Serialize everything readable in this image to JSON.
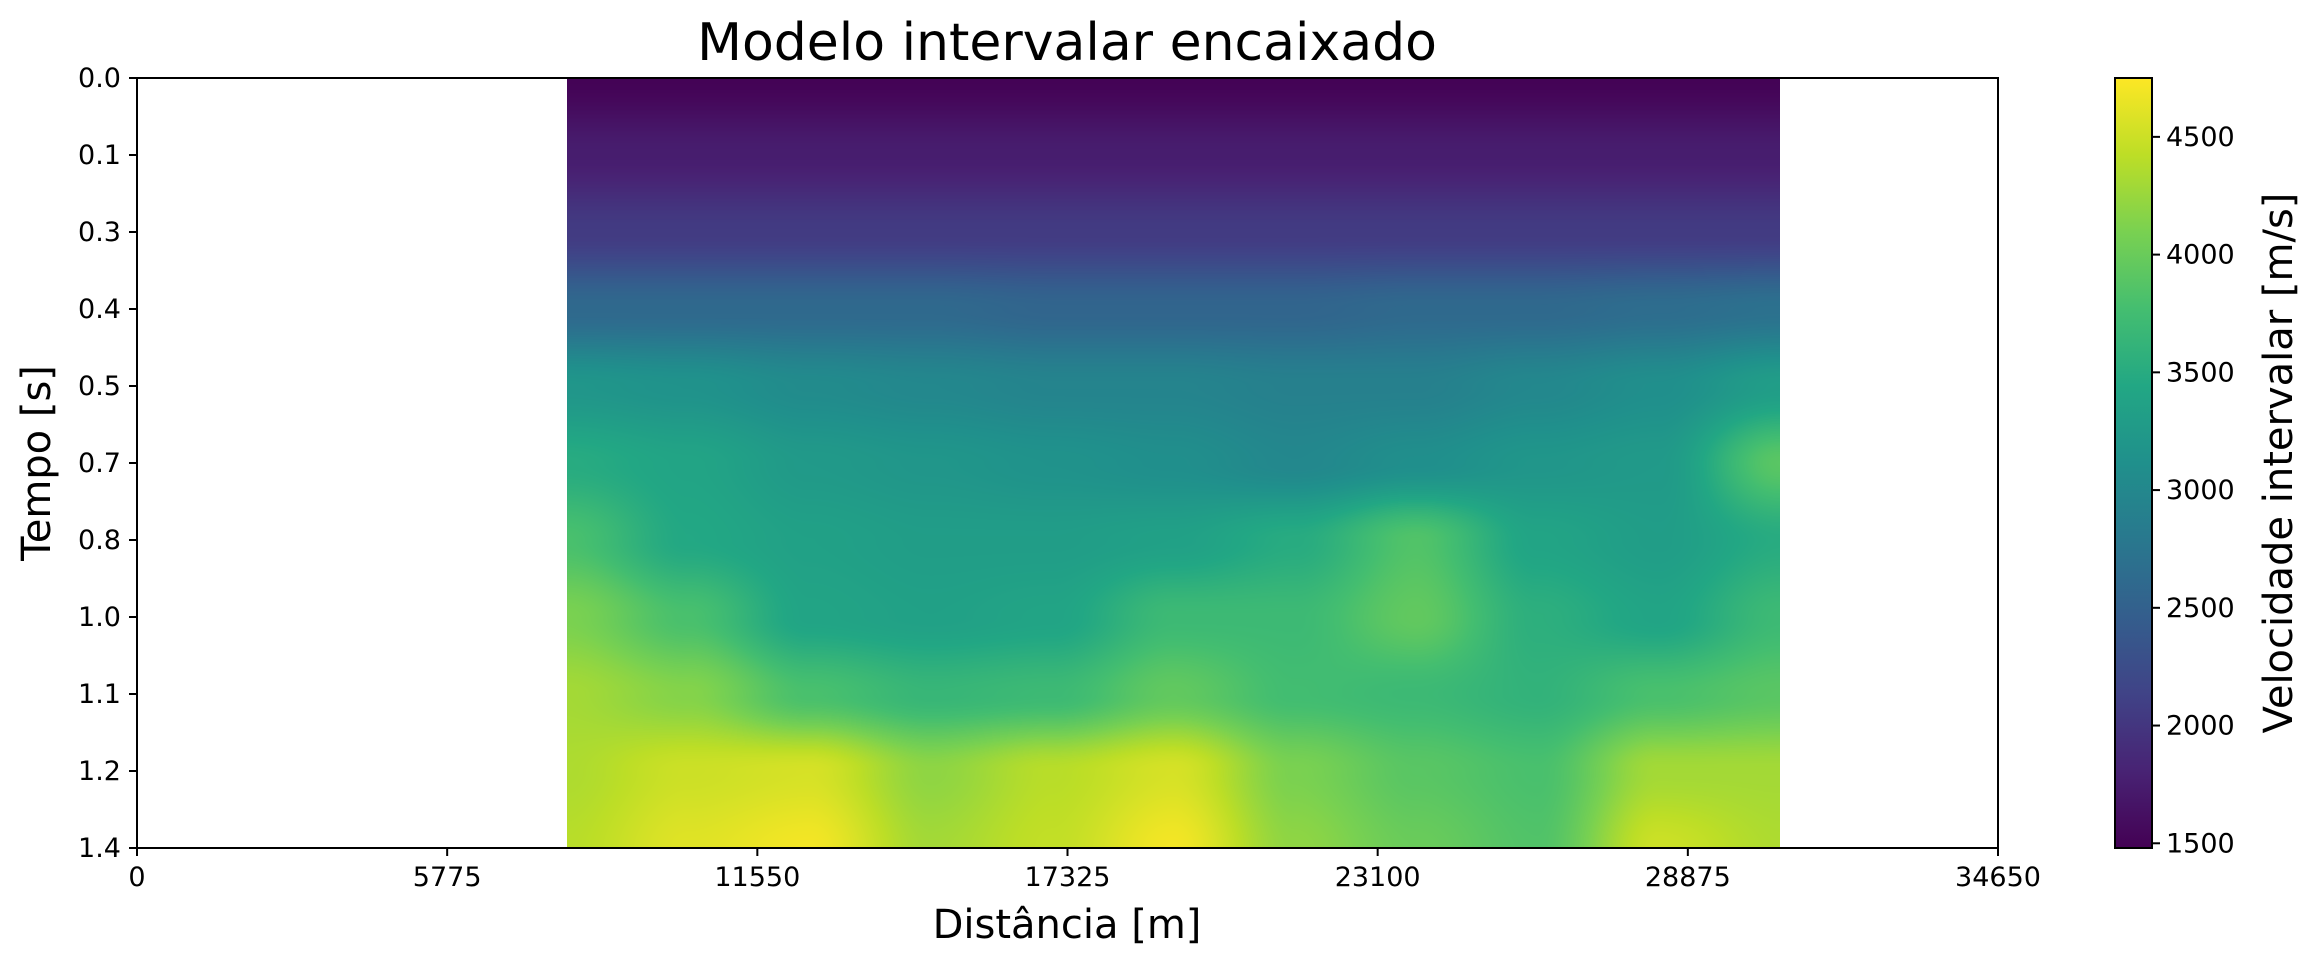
{
  "chart_data": {
    "type": "heatmap",
    "title": "Modelo intervalar encaixado",
    "xlabel": "Distância [m]",
    "ylabel": "Tempo [s]",
    "xlim": [
      0,
      34650
    ],
    "ylim": [
      0,
      1.4
    ],
    "y_inverted": true,
    "x_ticks": [
      "0",
      "5775",
      "11550",
      "17325",
      "23100",
      "28875",
      "34650"
    ],
    "y_ticks": [
      "0.0",
      "0.1",
      "0.3",
      "0.4",
      "0.5",
      "0.7",
      "0.8",
      "1.0",
      "1.1",
      "1.2",
      "1.4"
    ],
    "data_extent_x": [
      8000,
      30600
    ],
    "colormap": "viridis",
    "colorbar": {
      "label": "Velocidade intervalar [m/s]",
      "range": [
        1480,
        4750
      ],
      "ticks": [
        "1500",
        "2000",
        "2500",
        "3000",
        "3500",
        "4000",
        "4500"
      ]
    },
    "velocity_field": {
      "x": [
        8000,
        10260,
        12520,
        14780,
        17040,
        19300,
        21560,
        23820,
        26080,
        28340,
        30600
      ],
      "t": [
        0.0,
        0.14,
        0.28,
        0.42,
        0.56,
        0.7,
        0.84,
        0.98,
        1.12,
        1.26,
        1.4
      ],
      "v": [
        [
          1500,
          1500,
          1500,
          1500,
          1500,
          1500,
          1500,
          1500,
          1500,
          1500,
          1500
        ],
        [
          1750,
          1750,
          1750,
          1750,
          1750,
          1750,
          1750,
          1750,
          1750,
          1750,
          1750
        ],
        [
          2050,
          2050,
          2050,
          2050,
          2050,
          2050,
          2050,
          2050,
          2050,
          2050,
          2050
        ],
        [
          2600,
          2600,
          2600,
          2600,
          2550,
          2550,
          2550,
          2600,
          2600,
          2650,
          2700
        ],
        [
          3200,
          3150,
          3050,
          3000,
          2950,
          2950,
          2900,
          2900,
          3000,
          3100,
          3300
        ],
        [
          3500,
          3400,
          3250,
          3200,
          3150,
          3100,
          3000,
          3100,
          3200,
          3250,
          3900
        ],
        [
          3800,
          3450,
          3350,
          3300,
          3300,
          3350,
          3500,
          3850,
          3400,
          3300,
          3500
        ],
        [
          4100,
          3800,
          3400,
          3350,
          3400,
          3700,
          3700,
          3950,
          3550,
          3400,
          3700
        ],
        [
          4300,
          4150,
          3800,
          3650,
          3700,
          3950,
          3750,
          3700,
          3600,
          3800,
          3900
        ],
        [
          4350,
          4500,
          4550,
          4200,
          4400,
          4550,
          4100,
          3900,
          3800,
          4300,
          4300
        ],
        [
          4400,
          4600,
          4700,
          4300,
          4450,
          4700,
          4200,
          4000,
          3850,
          4500,
          4350
        ]
      ]
    }
  }
}
